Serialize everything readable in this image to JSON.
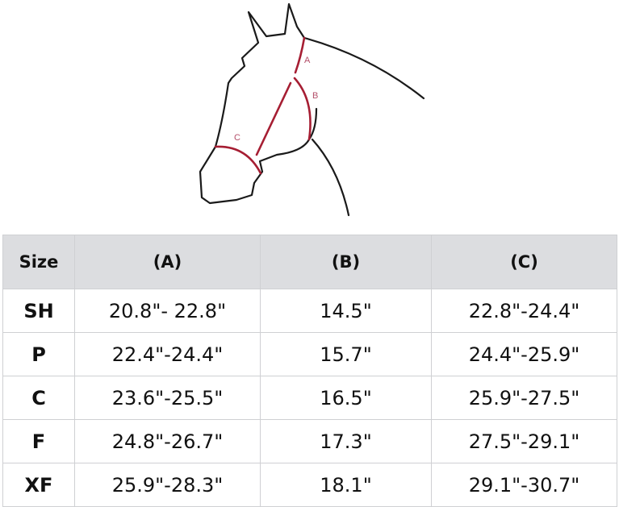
{
  "diagram": {
    "labels": [
      "A",
      "B",
      "C"
    ],
    "outline_color": "#1a1a1a",
    "measure_color": "#a61e33"
  },
  "table": {
    "headers": [
      "Size",
      "(A)",
      "(B)",
      "(C)"
    ],
    "rows": [
      [
        "SH",
        "20.8\"- 22.8\"",
        "14.5\"",
        "22.8\"-24.4\""
      ],
      [
        "P",
        "22.4\"-24.4\"",
        "15.7\"",
        "24.4\"-25.9\""
      ],
      [
        "C",
        "23.6\"-25.5\"",
        "16.5\"",
        "25.9\"-27.5\""
      ],
      [
        "F",
        "24.8\"-26.7\"",
        "17.3\"",
        "27.5\"-29.1\""
      ],
      [
        "XF",
        "25.9\"-28.3\"",
        "18.1\"",
        "29.1\"-30.7\""
      ]
    ]
  }
}
